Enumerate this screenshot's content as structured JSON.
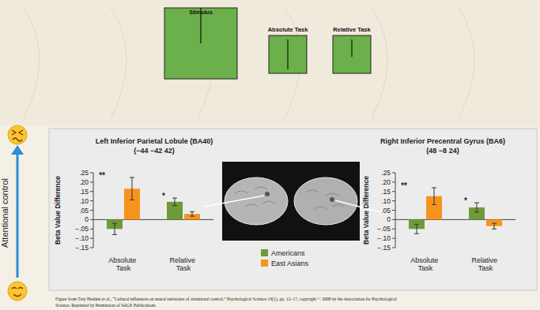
{
  "chart_data": [
    {
      "type": "bar",
      "title": "Left Inferior Parietal Lobule (BA40)",
      "subtitle": "(−44 −42 42)",
      "y_label": "Beta Value Difference",
      "categories": [
        "Absolute Task",
        "Relative Task"
      ],
      "series": [
        {
          "name": "Americans",
          "color": "#6e9a3a",
          "values": [
            -0.05,
            0.095
          ],
          "errors": [
            0.03,
            0.02
          ]
        },
        {
          "name": "East Asians",
          "color": "#f7941d",
          "values": [
            0.165,
            0.03
          ],
          "errors": [
            0.06,
            0.012
          ]
        }
      ],
      "annotations": [
        "**",
        "*"
      ],
      "ylim": [
        -0.15,
        0.25
      ],
      "yticks": [
        {
          "value": -0.15,
          "label": "−.15"
        },
        {
          "value": -0.1,
          "label": "−.10"
        },
        {
          "value": -0.05,
          "label": "−.05"
        },
        0,
        {
          "value": 0.05,
          "label": ".05"
        },
        {
          "value": 0.1,
          "label": ".10"
        },
        {
          "value": 0.15,
          "label": ".15"
        },
        {
          "value": 0.2,
          "label": ".20"
        },
        {
          "value": 0.25,
          "label": ".25"
        }
      ],
      "grid": false,
      "legend": "bottom"
    },
    {
      "type": "bar",
      "title": "Right Inferior Precentral Gyrus (BA6)",
      "subtitle": "(48 −8 24)",
      "y_label": "Beta Value Difference",
      "categories": [
        "Absolute Task",
        "Relative Task"
      ],
      "series": [
        {
          "color": "#6e9a3a",
          "values": [
            -0.05,
            0.065
          ],
          "errors": [
            0.025,
            0.025
          ]
        },
        {
          "color": "#f7941d",
          "values": [
            0.125,
            -0.035
          ],
          "errors": [
            0.045,
            0.015
          ]
        }
      ],
      "annotations": [
        "**",
        "*"
      ],
      "ylim": [
        -0.15,
        0.25
      ],
      "yticks": [
        {
          "value": -0.15,
          "label": "−.15"
        },
        {
          "value": -0.1,
          "label": "−.10"
        },
        {
          "value": -0.05,
          "label": "−.05"
        },
        0,
        {
          "value": 0.05,
          "label": ".05"
        },
        {
          "value": 0.1,
          "label": ".10"
        },
        {
          "value": 0.15,
          "label": ".15"
        },
        {
          "value": 0.2,
          "label": ".20"
        },
        {
          "value": 0.25,
          "label": ".25"
        }
      ],
      "grid": false
    }
  ],
  "figure": {
    "stimulus_label": "Stimulus",
    "absolute_label": "Absolute Task",
    "relative_label": "Relative Task",
    "side_label": "Attentional control",
    "citation": [
      "Figure from Trey Hedden et al., “Cultural influences on neural substrates of attentional control.” Psychological Science 19(1), pp. 12–17, copyright © 2008 by the Association for Psychological",
      "Science. Reprinted by Permission of SAGE Publications"
    ]
  }
}
